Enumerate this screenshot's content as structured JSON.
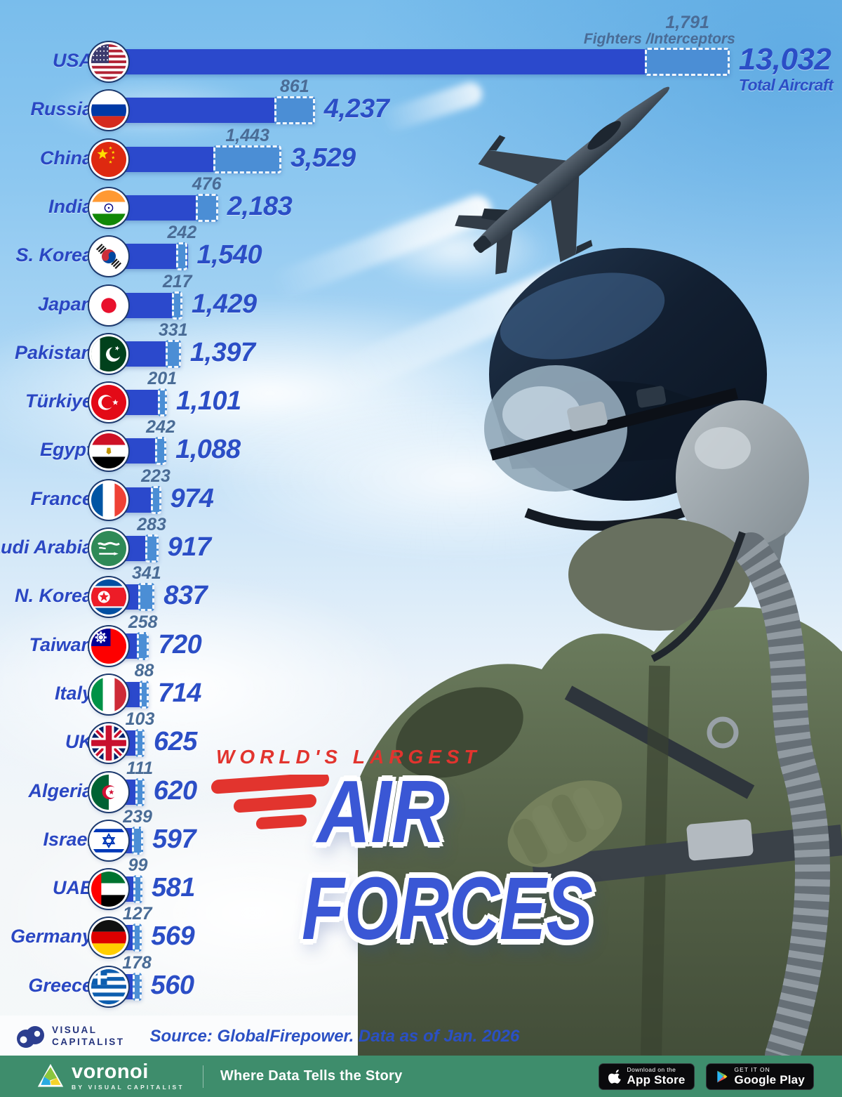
{
  "title": {
    "kicker": "WORLD'S LARGEST",
    "word1": "AIR",
    "word2": "FORCES"
  },
  "legend": {
    "fighters_caption": "Fighters /Interceptors",
    "total_caption": "Total Aircraft"
  },
  "source": {
    "logo_line1": "VISUAL",
    "logo_line2": "CAPITALIST",
    "text": "Source: GlobalFirepower. Data as of Jan. 2026"
  },
  "footer": {
    "brand": "voronoi",
    "brand_sub": "BY VISUAL CAPITALIST",
    "tagline": "Where Data Tells the Story",
    "appstore_top": "Download on the",
    "appstore_bottom": "App Store",
    "gplay_top": "GET IT ON",
    "gplay_bottom": "Google Play"
  },
  "colors": {
    "bar_total": "#2b49cc",
    "bar_fighters": "#4b8ed5",
    "value_text": "#2b4ec6",
    "fighters_text": "#4a6c96",
    "title_red": "#e2342e",
    "title_blue": "#3a57d5",
    "footer_green": "#3e8d6c"
  },
  "chart_data": {
    "type": "bar",
    "orientation": "horizontal",
    "title": "World's Largest Air Forces",
    "series": [
      {
        "name": "Total Aircraft"
      },
      {
        "name": "Fighters/Interceptors"
      }
    ],
    "legend_position": "first-row-inline",
    "grid": false,
    "xlim": [
      0,
      13032
    ],
    "countries": [
      {
        "name": "USA",
        "flag": "usa",
        "total": 13032,
        "fighters": 1791,
        "total_label": "13,032",
        "fighters_label": "1,791"
      },
      {
        "name": "Russia",
        "flag": "russia",
        "total": 4237,
        "fighters": 861,
        "total_label": "4,237",
        "fighters_label": "861"
      },
      {
        "name": "China",
        "flag": "china",
        "total": 3529,
        "fighters": 1443,
        "total_label": "3,529",
        "fighters_label": "1,443"
      },
      {
        "name": "India",
        "flag": "india",
        "total": 2183,
        "fighters": 476,
        "total_label": "2,183",
        "fighters_label": "476"
      },
      {
        "name": "S. Korea",
        "flag": "skorea",
        "total": 1540,
        "fighters": 242,
        "total_label": "1,540",
        "fighters_label": "242"
      },
      {
        "name": "Japan",
        "flag": "japan",
        "total": 1429,
        "fighters": 217,
        "total_label": "1,429",
        "fighters_label": "217"
      },
      {
        "name": "Pakistan",
        "flag": "pakistan",
        "total": 1397,
        "fighters": 331,
        "total_label": "1,397",
        "fighters_label": "331"
      },
      {
        "name": "Türkiye",
        "flag": "turkiye",
        "total": 1101,
        "fighters": 201,
        "total_label": "1,101",
        "fighters_label": "201"
      },
      {
        "name": "Egypt",
        "flag": "egypt",
        "total": 1088,
        "fighters": 242,
        "total_label": "1,088",
        "fighters_label": "242"
      },
      {
        "name": "France",
        "flag": "france",
        "total": 974,
        "fighters": 223,
        "total_label": "974",
        "fighters_label": "223"
      },
      {
        "name": "Saudi Arabia",
        "flag": "saudi",
        "total": 917,
        "fighters": 283,
        "total_label": "917",
        "fighters_label": "283"
      },
      {
        "name": "N. Korea",
        "flag": "nkorea",
        "total": 837,
        "fighters": 341,
        "total_label": "837",
        "fighters_label": "341"
      },
      {
        "name": "Taiwan",
        "flag": "taiwan",
        "total": 720,
        "fighters": 258,
        "total_label": "720",
        "fighters_label": "258"
      },
      {
        "name": "Italy",
        "flag": "italy",
        "total": 714,
        "fighters": 88,
        "total_label": "714",
        "fighters_label": "88"
      },
      {
        "name": "UK",
        "flag": "uk",
        "total": 625,
        "fighters": 103,
        "total_label": "625",
        "fighters_label": "103"
      },
      {
        "name": "Algeria",
        "flag": "algeria",
        "total": 620,
        "fighters": 111,
        "total_label": "620",
        "fighters_label": "111"
      },
      {
        "name": "Israel",
        "flag": "israel",
        "total": 597,
        "fighters": 239,
        "total_label": "597",
        "fighters_label": "239"
      },
      {
        "name": "UAE",
        "flag": "uae",
        "total": 581,
        "fighters": 99,
        "total_label": "581",
        "fighters_label": "99"
      },
      {
        "name": "Germany",
        "flag": "germany",
        "total": 569,
        "fighters": 127,
        "total_label": "569",
        "fighters_label": "127"
      },
      {
        "name": "Greece",
        "flag": "greece",
        "total": 560,
        "fighters": 178,
        "total_label": "560",
        "fighters_label": "178"
      }
    ]
  }
}
